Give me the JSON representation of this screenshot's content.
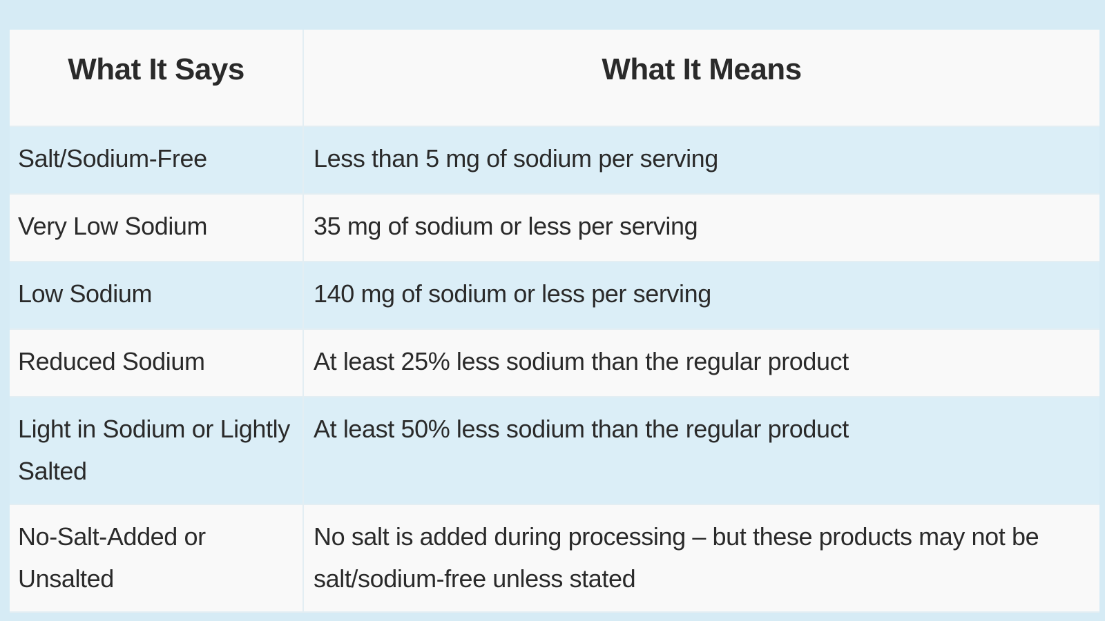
{
  "table": {
    "headers": {
      "what_it_says": "What It Says",
      "what_it_means": "What It Means"
    },
    "rows": [
      {
        "says": "Salt/Sodium-Free",
        "means": "Less than 5 mg of sodium per serving"
      },
      {
        "says": "Very Low Sodium",
        "means": "35 mg of sodium or less per serving"
      },
      {
        "says": "Low Sodium",
        "means": "140 mg of sodium or less per serving"
      },
      {
        "says": "Reduced Sodium",
        "means": "At least 25% less sodium than the regular product"
      },
      {
        "says": "Light in Sodium or Lightly Salted",
        "means": "At least 50% less sodium than the regular product"
      },
      {
        "says": "No-Salt-Added or Unsalted",
        "means": "No salt is added during processing – but these products may not be salt/sodium-free unless stated"
      }
    ]
  },
  "colors": {
    "page_background": "#d6ebf5",
    "header_background": "#f9f9f9",
    "row_tinted": "#dbeef7",
    "row_plain": "#f9f9f9",
    "text": "#2a2a2a"
  }
}
